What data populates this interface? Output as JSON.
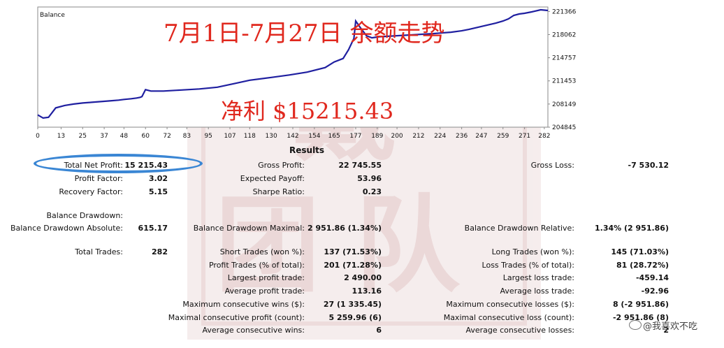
{
  "chart_data": {
    "type": "line",
    "title": "Balance",
    "x_ticks": [
      0,
      13,
      25,
      37,
      48,
      60,
      72,
      83,
      95,
      107,
      118,
      130,
      142,
      154,
      165,
      177,
      189,
      200,
      212,
      224,
      236,
      247,
      259,
      271,
      282
    ],
    "y_ticks": [
      204845,
      208149,
      211453,
      214757,
      218062,
      221366
    ],
    "xlim": [
      0,
      284
    ],
    "ylim": [
      204845,
      222000
    ],
    "grid": false,
    "series": [
      {
        "x": [
          0,
          3,
          6,
          10,
          15,
          20,
          25,
          30,
          35,
          40,
          45,
          48,
          52,
          55,
          57,
          58,
          60,
          63,
          70,
          80,
          90,
          100,
          110,
          118,
          130,
          140,
          150,
          160,
          165,
          170,
          173,
          176,
          177,
          180,
          183,
          186,
          190,
          200,
          210,
          220,
          230,
          236,
          240,
          245,
          250,
          255,
          259,
          262,
          265,
          268,
          271,
          275,
          280,
          284
        ],
        "values": [
          206600,
          206150,
          206250,
          207600,
          207950,
          208150,
          208300,
          208400,
          208500,
          208600,
          208700,
          208800,
          208900,
          209000,
          209100,
          209200,
          210200,
          210000,
          210000,
          210150,
          210300,
          210550,
          211100,
          211550,
          211950,
          212300,
          212700,
          213350,
          214150,
          214650,
          215900,
          217500,
          220000,
          218900,
          217900,
          217600,
          217750,
          217900,
          218050,
          218200,
          218400,
          218600,
          218800,
          219100,
          219400,
          219700,
          220000,
          220300,
          220800,
          221000,
          221100,
          221300,
          221600,
          221500
        ]
      }
    ]
  },
  "colors": {
    "line": "#1f1fa0",
    "overlay_red": "#e0281e",
    "ellipse": "#3a86d4"
  },
  "overlay": {
    "headline": "7月1日-7月27日 余额走势",
    "profit": "净利 $15215.43"
  },
  "results": {
    "title": "Results",
    "rows": [
      {
        "c1_label": "Total Net Profit:",
        "c1_value": "15 215.43",
        "c2_label": "Gross Profit:",
        "c2_value": "22 745.55",
        "c3_label": "Gross Loss:",
        "c3_value": "-7 530.12"
      },
      {
        "c1_label": "Profit Factor:",
        "c1_value": "3.02",
        "c2_label": "Expected Payoff:",
        "c2_value": "53.96",
        "c3_label": "",
        "c3_value": ""
      },
      {
        "c1_label": "Recovery Factor:",
        "c1_value": "5.15",
        "c2_label": "Sharpe Ratio:",
        "c2_value": "0.23",
        "c3_label": "",
        "c3_value": ""
      },
      {
        "c1_label": "Balance Drawdown:",
        "c1_value": "",
        "c2_label": "",
        "c2_value": "",
        "c3_label": "",
        "c3_value": ""
      },
      {
        "c1_label": "Balance Drawdown Absolute:",
        "c1_value": "615.17",
        "c2_label": "Balance Drawdown Maximal:",
        "c2_value": "2 951.86 (1.34%)",
        "c3_label": "Balance Drawdown Relative:",
        "c3_value": "1.34% (2 951.86)"
      },
      {
        "c1_label": "Total Trades:",
        "c1_value": "282",
        "c2_label": "Short Trades (won %):",
        "c2_value": "137 (71.53%)",
        "c3_label": "Long Trades (won %):",
        "c3_value": "145 (71.03%)"
      },
      {
        "c1_label": "",
        "c1_value": "",
        "c2_label": "Profit Trades (% of total):",
        "c2_value": "201 (71.28%)",
        "c3_label": "Loss Trades (% of total):",
        "c3_value": "81 (28.72%)"
      },
      {
        "c1_label": "",
        "c1_value": "",
        "c2_label": "Largest profit trade:",
        "c2_value": "2 490.00",
        "c3_label": "Largest loss trade:",
        "c3_value": "-459.14"
      },
      {
        "c1_label": "",
        "c1_value": "",
        "c2_label": "Average profit trade:",
        "c2_value": "113.16",
        "c3_label": "Average loss trade:",
        "c3_value": "-92.96"
      },
      {
        "c1_label": "",
        "c1_value": "",
        "c2_label": "Maximum consecutive wins ($):",
        "c2_value": "27 (1 335.45)",
        "c3_label": "Maximum consecutive losses ($):",
        "c3_value": "8 (-2 951.86)"
      },
      {
        "c1_label": "",
        "c1_value": "",
        "c2_label": "Maximal consecutive profit (count):",
        "c2_value": "5 259.96 (6)",
        "c3_label": "Maximal consecutive loss (count):",
        "c3_value": "-2 951.86 (8)"
      },
      {
        "c1_label": "",
        "c1_value": "",
        "c2_label": "Average consecutive wins:",
        "c2_value": "6",
        "c3_label": "Average consecutive losses:",
        "c3_value": "2"
      }
    ]
  },
  "watermark": {
    "label": "@我喜欢不吃"
  }
}
